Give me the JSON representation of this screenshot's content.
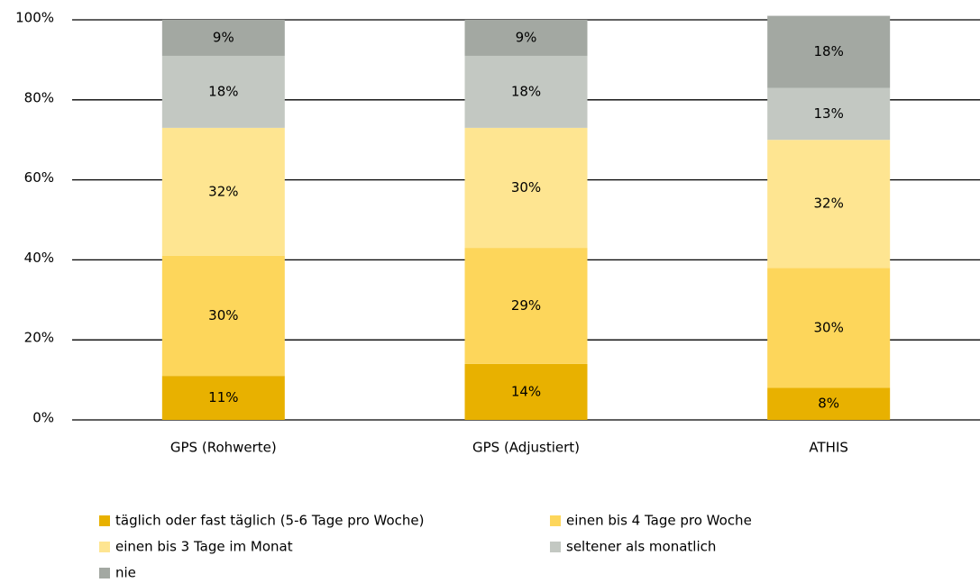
{
  "chart_data": {
    "type": "stacked_bar",
    "categories": [
      "GPS (Rohwerte)",
      "GPS (Adjustiert)",
      "ATHIS"
    ],
    "series": [
      {
        "name": "täglich oder fast täglich (5-6 Tage pro Woche)",
        "color": "#e8b100",
        "values": [
          11,
          14,
          8
        ],
        "value_labels": [
          "11%",
          "14%",
          "8%"
        ]
      },
      {
        "name": "einen bis 4 Tage pro Woche",
        "color": "#fdd65b",
        "values": [
          30,
          29,
          30
        ],
        "value_labels": [
          "30%",
          "29%",
          "30%"
        ]
      },
      {
        "name": "einen bis 3 Tage im Monat",
        "color": "#fee591",
        "values": [
          32,
          30,
          32
        ],
        "value_labels": [
          "32%",
          "30%",
          "32%"
        ]
      },
      {
        "name": "seltener als monatlich",
        "color": "#c3c8c2",
        "values": [
          18,
          18,
          13
        ],
        "value_labels": [
          "18%",
          "18%",
          "13%"
        ]
      },
      {
        "name": "nie",
        "color": "#a3a8a2",
        "values": [
          9,
          9,
          18
        ],
        "value_labels": [
          "9%",
          "9%",
          "18%"
        ]
      }
    ],
    "ylim": [
      0,
      100
    ],
    "yticks": [
      {
        "value": 0,
        "label": "0%"
      },
      {
        "value": 20,
        "label": "20%"
      },
      {
        "value": 40,
        "label": "40%"
      },
      {
        "value": 60,
        "label": "60%"
      },
      {
        "value": 80,
        "label": "80%"
      },
      {
        "value": 100,
        "label": "100%"
      }
    ],
    "grid": true
  }
}
